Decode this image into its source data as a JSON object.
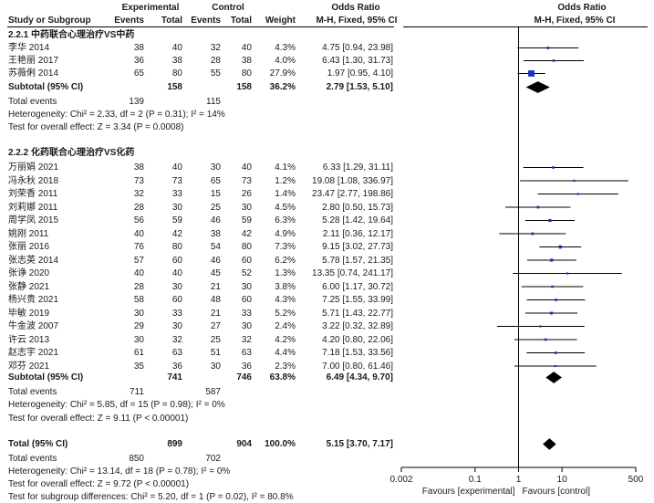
{
  "header": {
    "experimental": "Experimental",
    "control": "Control",
    "odds_ratio": "Odds Ratio",
    "study": "Study or Subgroup",
    "events": "Events",
    "total": "Total",
    "weight": "Weight",
    "method_ci": "M-H, Fixed, 95% CI"
  },
  "chart_data": {
    "type": "forest",
    "xscale": "log",
    "xlim": [
      0.002,
      500
    ],
    "ticks": [
      "0.002",
      "0.1",
      "1",
      "10",
      "500"
    ],
    "favours_left": "Favours [experimental]",
    "favours_right": "Favours [control]",
    "colors": {
      "marker": "#1a32b8",
      "line": "#000000"
    },
    "subgroups": [
      {
        "title": "2.2.1 中药联合心理治疗VS中药",
        "studies": [
          {
            "name": "李华 2014",
            "e_events": "38",
            "e_total": "40",
            "c_events": "32",
            "c_total": "40",
            "weight": "4.3%",
            "ci": "4.75 [0.94, 23.98]",
            "or": 4.75,
            "lo": 0.94,
            "hi": 23.98
          },
          {
            "name": "王艳丽 2017",
            "e_events": "36",
            "e_total": "38",
            "c_events": "28",
            "c_total": "38",
            "weight": "4.0%",
            "ci": "6.43 [1.30, 31.73]",
            "or": 6.43,
            "lo": 1.3,
            "hi": 31.73
          },
          {
            "name": "苏薇俐 2014",
            "e_events": "65",
            "e_total": "80",
            "c_events": "55",
            "c_total": "80",
            "weight": "27.9%",
            "ci": "1.97 [0.95, 4.10]",
            "or": 1.97,
            "lo": 0.95,
            "hi": 4.1
          }
        ],
        "subtotal": {
          "label": "Subtotal (95% CI)",
          "e_total": "158",
          "c_total": "158",
          "weight": "36.2%",
          "ci": "2.79 [1.53, 5.10]",
          "or": 2.79,
          "lo": 1.53,
          "hi": 5.1
        },
        "total_events": {
          "label": "Total events",
          "e": "139",
          "c": "115"
        },
        "heterogeneity": "Heterogeneity: Chi² = 2.33, df = 2 (P = 0.31); I² = 14%",
        "overall": "Test for overall effect: Z = 3.34 (P = 0.0008)"
      },
      {
        "title": "2.2.2 化药联合心理治疗VS化药",
        "studies": [
          {
            "name": "万丽娟 2021",
            "e_events": "38",
            "e_total": "40",
            "c_events": "30",
            "c_total": "40",
            "weight": "4.1%",
            "ci": "6.33 [1.29, 31.11]",
            "or": 6.33,
            "lo": 1.29,
            "hi": 31.11
          },
          {
            "name": "冯永秋 2018",
            "e_events": "73",
            "e_total": "73",
            "c_events": "65",
            "c_total": "73",
            "weight": "1.2%",
            "ci": "19.08 [1.08, 336.97]",
            "or": 19.08,
            "lo": 1.08,
            "hi": 336.97
          },
          {
            "name": "刘荣香 2011",
            "e_events": "32",
            "e_total": "33",
            "c_events": "15",
            "c_total": "26",
            "weight": "1.4%",
            "ci": "23.47 [2.77, 198.86]",
            "or": 23.47,
            "lo": 2.77,
            "hi": 198.86
          },
          {
            "name": "刘莉娜 2011",
            "e_events": "28",
            "e_total": "30",
            "c_events": "25",
            "c_total": "30",
            "weight": "4.5%",
            "ci": "2.80 [0.50, 15.73]",
            "or": 2.8,
            "lo": 0.5,
            "hi": 15.73
          },
          {
            "name": "周学凤 2015",
            "e_events": "56",
            "e_total": "59",
            "c_events": "46",
            "c_total": "59",
            "weight": "6.3%",
            "ci": "5.28 [1.42, 19.64]",
            "or": 5.28,
            "lo": 1.42,
            "hi": 19.64
          },
          {
            "name": "姚刚 2011",
            "e_events": "40",
            "e_total": "42",
            "c_events": "38",
            "c_total": "42",
            "weight": "4.9%",
            "ci": "2.11 [0.36, 12.17]",
            "or": 2.11,
            "lo": 0.36,
            "hi": 12.17
          },
          {
            "name": "张丽 2016",
            "e_events": "76",
            "e_total": "80",
            "c_events": "54",
            "c_total": "80",
            "weight": "7.3%",
            "ci": "9.15 [3.02, 27.73]",
            "or": 9.15,
            "lo": 3.02,
            "hi": 27.73
          },
          {
            "name": "张志英 2014",
            "e_events": "57",
            "e_total": "60",
            "c_events": "46",
            "c_total": "60",
            "weight": "6.2%",
            "ci": "5.78 [1.57, 21.35]",
            "or": 5.78,
            "lo": 1.57,
            "hi": 21.35
          },
          {
            "name": "张诤 2020",
            "e_events": "40",
            "e_total": "40",
            "c_events": "45",
            "c_total": "52",
            "weight": "1.3%",
            "ci": "13.35 [0.74, 241.17]",
            "or": 13.35,
            "lo": 0.74,
            "hi": 241.17
          },
          {
            "name": "张静 2021",
            "e_events": "28",
            "e_total": "30",
            "c_events": "21",
            "c_total": "30",
            "weight": "3.8%",
            "ci": "6.00 [1.17, 30.72]",
            "or": 6.0,
            "lo": 1.17,
            "hi": 30.72
          },
          {
            "name": "杨兴贵 2021",
            "e_events": "58",
            "e_total": "60",
            "c_events": "48",
            "c_total": "60",
            "weight": "4.3%",
            "ci": "7.25 [1.55, 33.99]",
            "or": 7.25,
            "lo": 1.55,
            "hi": 33.99
          },
          {
            "name": "毕敏 2019",
            "e_events": "30",
            "e_total": "33",
            "c_events": "21",
            "c_total": "33",
            "weight": "5.2%",
            "ci": "5.71 [1.43, 22.77]",
            "or": 5.71,
            "lo": 1.43,
            "hi": 22.77
          },
          {
            "name": "牛金波 2007",
            "e_events": "29",
            "e_total": "30",
            "c_events": "27",
            "c_total": "30",
            "weight": "2.4%",
            "ci": "3.22 [0.32, 32.89]",
            "or": 3.22,
            "lo": 0.32,
            "hi": 32.89
          },
          {
            "name": "许云 2013",
            "e_events": "30",
            "e_total": "32",
            "c_events": "25",
            "c_total": "32",
            "weight": "4.2%",
            "ci": "4.20 [0.80, 22.06]",
            "or": 4.2,
            "lo": 0.8,
            "hi": 22.06
          },
          {
            "name": "赵志宇 2021",
            "e_events": "61",
            "e_total": "63",
            "c_events": "51",
            "c_total": "63",
            "weight": "4.4%",
            "ci": "7.18 [1.53, 33.56]",
            "or": 7.18,
            "lo": 1.53,
            "hi": 33.56
          },
          {
            "name": "邓芬 2021",
            "e_events": "35",
            "e_total": "36",
            "c_events": "30",
            "c_total": "36",
            "weight": "2.3%",
            "ci": "7.00 [0.80, 61.46]",
            "or": 7.0,
            "lo": 0.8,
            "hi": 61.46
          }
        ],
        "subtotal": {
          "label": "Subtotal (95% CI)",
          "e_total": "741",
          "c_total": "746",
          "weight": "63.8%",
          "ci": "6.49 [4.34, 9.70]",
          "or": 6.49,
          "lo": 4.34,
          "hi": 9.7
        },
        "total_events": {
          "label": "Total events",
          "e": "711",
          "c": "587"
        },
        "heterogeneity": "Heterogeneity: Chi² = 5.85, df = 15 (P = 0.98); I² = 0%",
        "overall": "Test for overall effect: Z = 9.11 (P < 0.00001)"
      }
    ],
    "total": {
      "label": "Total (95% CI)",
      "e_total": "899",
      "c_total": "904",
      "weight": "100.0%",
      "ci": "5.15 [3.70, 7.17]",
      "or": 5.15,
      "lo": 3.7,
      "hi": 7.17
    },
    "total_events": {
      "label": "Total events",
      "e": "850",
      "c": "702"
    },
    "heterogeneity": "Heterogeneity: Chi² = 13.14, df = 18 (P = 0.78); I² = 0%",
    "overall": "Test for overall effect: Z = 9.72 (P < 0.00001)",
    "subgroup_diff": "Test for subgroup differences: Chi² = 5.20, df = 1 (P = 0.02), I² = 80.8%"
  }
}
